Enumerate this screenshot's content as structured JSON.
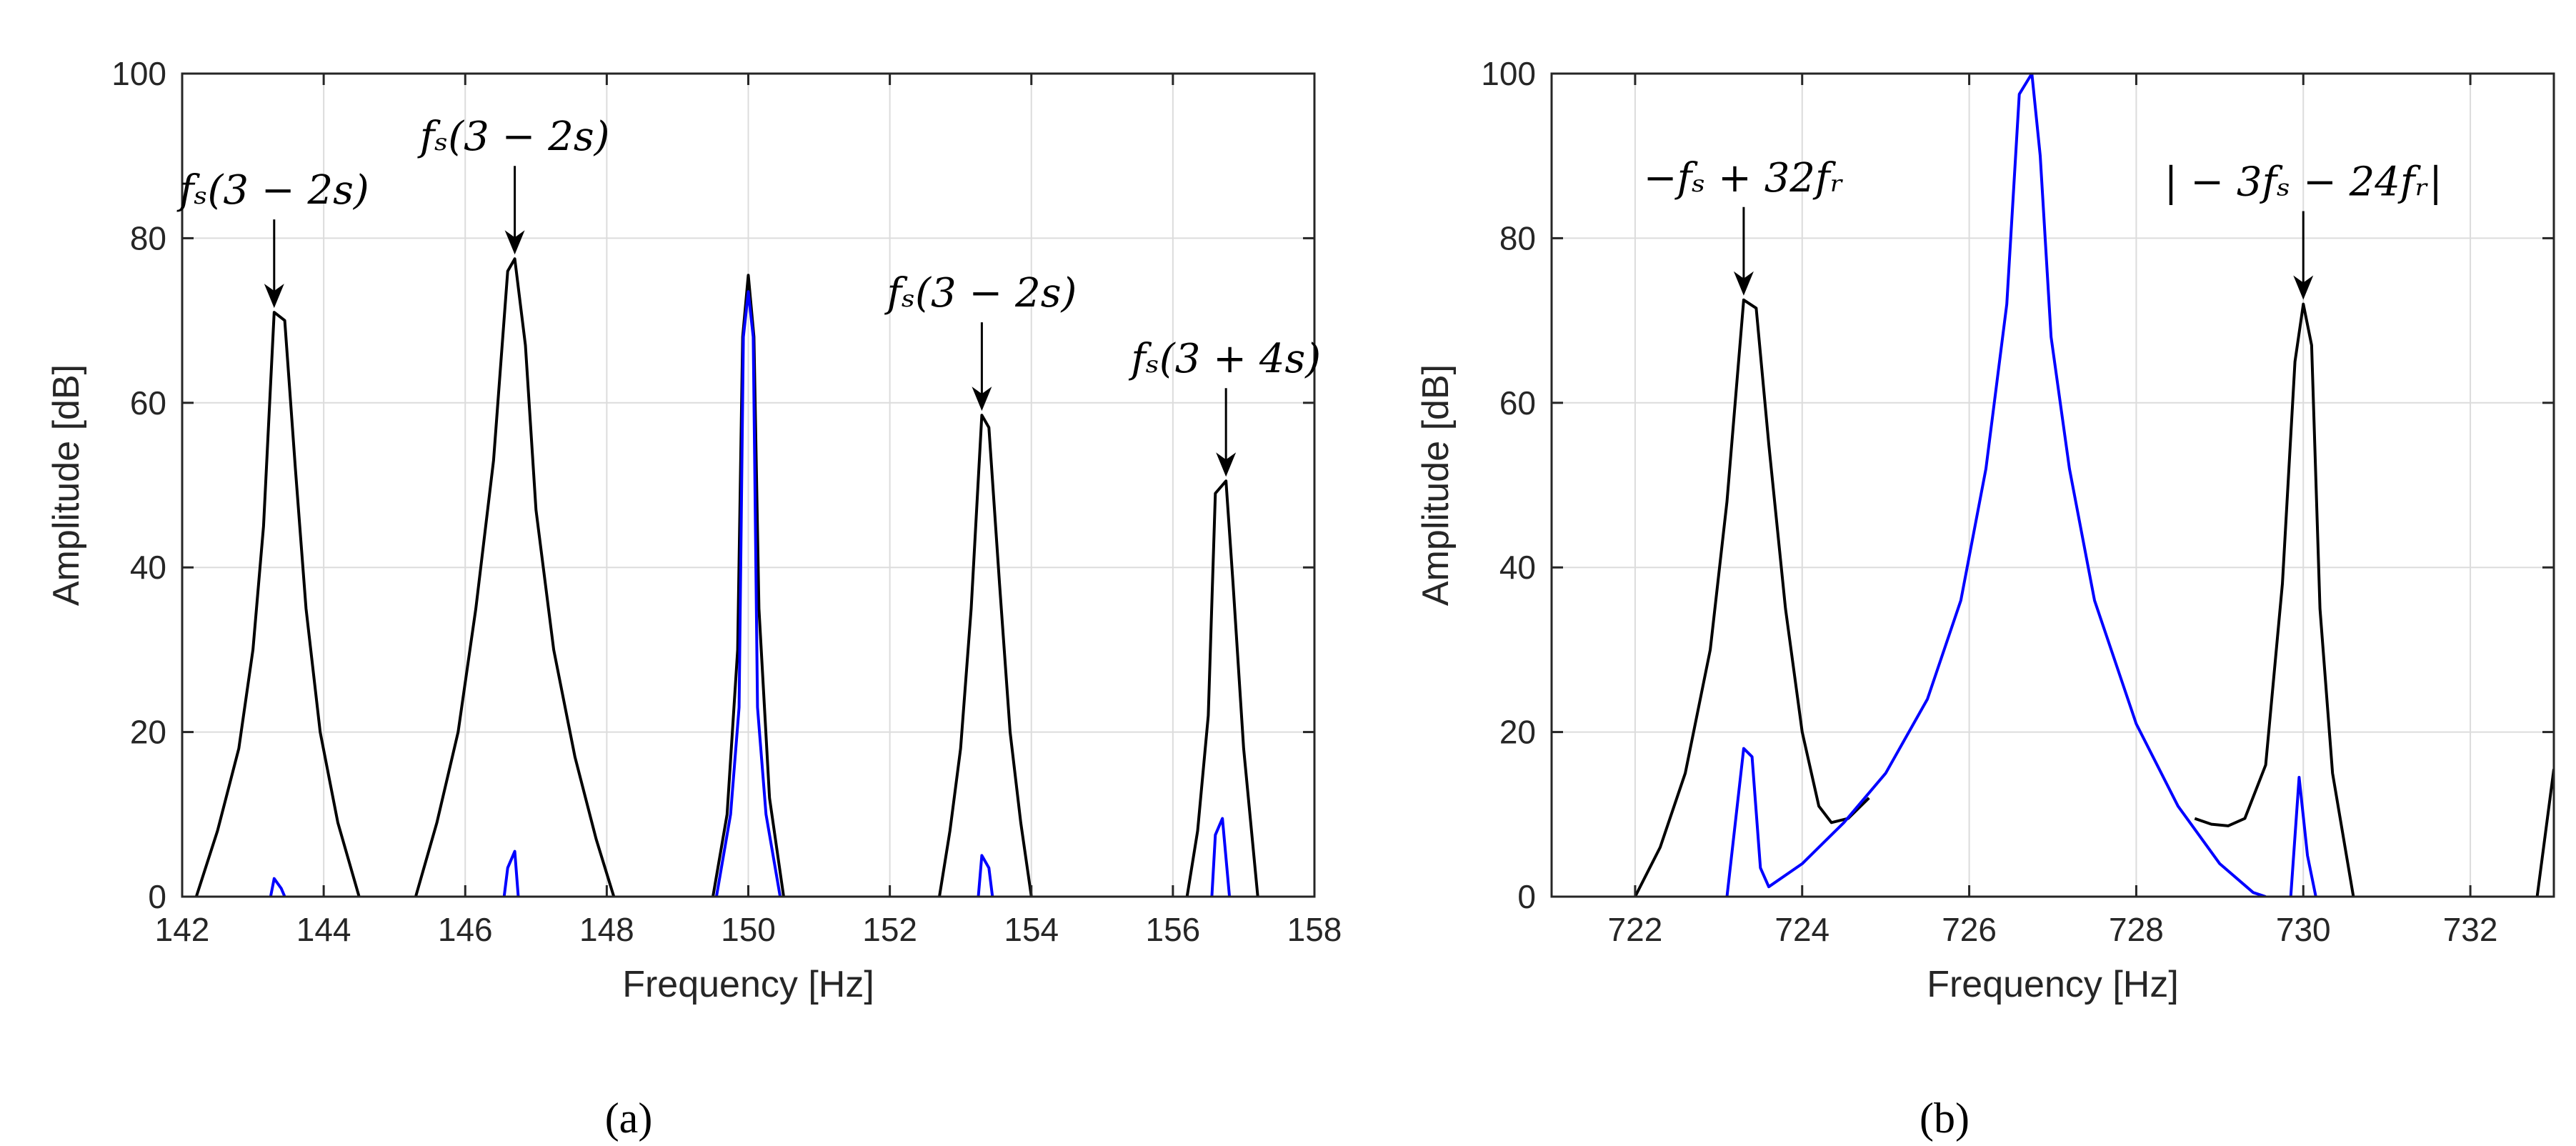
{
  "chart_data": [
    {
      "type": "line",
      "panel": "a",
      "caption": "(a)",
      "title": "",
      "xlabel": "Frequency [Hz]",
      "ylabel": "Amplitude [dB]",
      "xlim": [
        142,
        158
      ],
      "ylim": [
        0,
        100
      ],
      "xticks": [
        142,
        144,
        146,
        148,
        150,
        152,
        154,
        156,
        158
      ],
      "yticks": [
        0,
        20,
        40,
        60,
        80,
        100
      ],
      "grid": true,
      "series": [
        {
          "name": "black",
          "color": "#000000",
          "segments": [
            [
              [
                142.2,
                0
              ],
              [
                142.5,
                8
              ],
              [
                142.8,
                18
              ],
              [
                143.0,
                30
              ],
              [
                143.15,
                45
              ],
              [
                143.3,
                71
              ],
              [
                143.45,
                70
              ],
              [
                143.6,
                52
              ],
              [
                143.75,
                35
              ],
              [
                143.95,
                20
              ],
              [
                144.2,
                9
              ],
              [
                144.5,
                0
              ]
            ],
            [
              [
                145.3,
                0
              ],
              [
                145.6,
                9
              ],
              [
                145.9,
                20
              ],
              [
                146.15,
                35
              ],
              [
                146.4,
                53
              ],
              [
                146.6,
                76
              ],
              [
                146.7,
                77.5
              ],
              [
                146.85,
                67
              ],
              [
                147.0,
                47
              ],
              [
                147.25,
                30
              ],
              [
                147.55,
                17
              ],
              [
                147.85,
                7
              ],
              [
                148.1,
                0
              ]
            ],
            [
              [
                149.5,
                0
              ],
              [
                149.7,
                10
              ],
              [
                149.85,
                30
              ],
              [
                149.92,
                68
              ],
              [
                150.0,
                75.5
              ],
              [
                150.08,
                68
              ],
              [
                150.15,
                35
              ],
              [
                150.3,
                12
              ],
              [
                150.5,
                0
              ]
            ],
            [
              [
                152.7,
                0
              ],
              [
                152.85,
                8
              ],
              [
                153.0,
                18
              ],
              [
                153.15,
                35
              ],
              [
                153.3,
                58.5
              ],
              [
                153.4,
                57
              ],
              [
                153.55,
                38
              ],
              [
                153.7,
                20
              ],
              [
                153.85,
                9
              ],
              [
                154.0,
                0
              ]
            ],
            [
              [
                156.2,
                0
              ],
              [
                156.35,
                8
              ],
              [
                156.5,
                22
              ],
              [
                156.6,
                49
              ],
              [
                156.75,
                50.5
              ],
              [
                156.85,
                38
              ],
              [
                157.0,
                18
              ],
              [
                157.2,
                0
              ]
            ]
          ]
        },
        {
          "name": "blue",
          "color": "#0000ff",
          "segments": [
            [
              [
                143.25,
                0
              ],
              [
                143.3,
                2.2
              ],
              [
                143.4,
                1
              ],
              [
                143.45,
                0
              ]
            ],
            [
              [
                146.55,
                0
              ],
              [
                146.6,
                3.5
              ],
              [
                146.7,
                5.5
              ],
              [
                146.75,
                0
              ]
            ],
            [
              [
                149.55,
                0
              ],
              [
                149.75,
                10
              ],
              [
                149.87,
                23
              ],
              [
                149.93,
                68
              ],
              [
                150.0,
                73.5
              ],
              [
                150.07,
                68
              ],
              [
                150.13,
                23
              ],
              [
                150.25,
                10
              ],
              [
                150.45,
                0
              ]
            ],
            [
              [
                153.25,
                0
              ],
              [
                153.3,
                5
              ],
              [
                153.4,
                3.5
              ],
              [
                153.45,
                0
              ]
            ],
            [
              [
                156.55,
                0
              ],
              [
                156.6,
                7.5
              ],
              [
                156.7,
                9.5
              ],
              [
                156.8,
                0
              ]
            ]
          ]
        }
      ],
      "annotations": [
        {
          "text": "fₛ(3 − 2s)",
          "x": 143.3,
          "y": 71
        },
        {
          "text": "fₛ(3 − 2s)",
          "x": 146.7,
          "y": 77.5
        },
        {
          "text": "fₛ(3 − 2s)",
          "x": 153.3,
          "y": 58.5
        },
        {
          "text": "fₛ(3 + 4s)",
          "x": 156.75,
          "y": 50.5
        }
      ]
    },
    {
      "type": "line",
      "panel": "b",
      "caption": "(b)",
      "title": "",
      "xlabel": "Frequency [Hz]",
      "ylabel": "Amplitude [dB]",
      "xlim": [
        721,
        733
      ],
      "ylim": [
        0,
        100
      ],
      "xticks": [
        722,
        724,
        726,
        728,
        730,
        732
      ],
      "yticks": [
        0,
        20,
        40,
        60,
        80,
        100
      ],
      "grid": true,
      "series": [
        {
          "name": "black",
          "color": "#000000",
          "segments": [
            [
              [
                722.0,
                0
              ],
              [
                722.3,
                6
              ],
              [
                722.6,
                15
              ],
              [
                722.9,
                30
              ],
              [
                723.1,
                48
              ],
              [
                723.3,
                72.5
              ],
              [
                723.45,
                71.5
              ],
              [
                723.6,
                55
              ],
              [
                723.8,
                35
              ],
              [
                724.0,
                20
              ],
              [
                724.2,
                11
              ],
              [
                724.35,
                9
              ],
              [
                724.55,
                9.5
              ],
              [
                724.8,
                12
              ]
            ],
            [
              [
                728.7,
                9.5
              ],
              [
                728.9,
                8.8
              ],
              [
                729.1,
                8.6
              ],
              [
                729.3,
                9.5
              ],
              [
                729.55,
                16
              ],
              [
                729.75,
                38
              ],
              [
                729.9,
                65
              ],
              [
                730.0,
                72
              ],
              [
                730.1,
                67
              ],
              [
                730.2,
                35
              ],
              [
                730.35,
                15
              ],
              [
                730.6,
                0
              ]
            ],
            [
              [
                732.8,
                0
              ],
              [
                733.0,
                15.5
              ]
            ]
          ]
        },
        {
          "name": "blue",
          "color": "#0000ff",
          "segments": [
            [
              [
                723.1,
                0
              ],
              [
                723.3,
                18
              ],
              [
                723.4,
                17
              ],
              [
                723.5,
                3.5
              ],
              [
                723.6,
                1.2
              ],
              [
                724.0,
                4
              ],
              [
                724.5,
                9
              ],
              [
                725.0,
                15
              ],
              [
                725.5,
                24
              ],
              [
                725.9,
                36
              ],
              [
                726.2,
                52
              ],
              [
                726.45,
                72
              ],
              [
                726.6,
                97.5
              ],
              [
                726.75,
                100
              ],
              [
                726.85,
                90
              ],
              [
                726.98,
                68
              ],
              [
                727.2,
                52
              ],
              [
                727.5,
                36
              ],
              [
                728.0,
                21
              ],
              [
                728.5,
                11
              ],
              [
                729.0,
                4
              ],
              [
                729.4,
                0.5
              ],
              [
                729.55,
                0
              ]
            ],
            [
              [
                729.85,
                0
              ],
              [
                729.95,
                14.5
              ],
              [
                730.05,
                5
              ],
              [
                730.15,
                0
              ]
            ]
          ]
        }
      ],
      "annotations": [
        {
          "text": "−fₛ + 32fᵣ",
          "x": 723.3,
          "y": 72.5
        },
        {
          "text": "| − 3fₛ − 24fᵣ|",
          "x": 730.0,
          "y": 72
        }
      ]
    }
  ]
}
